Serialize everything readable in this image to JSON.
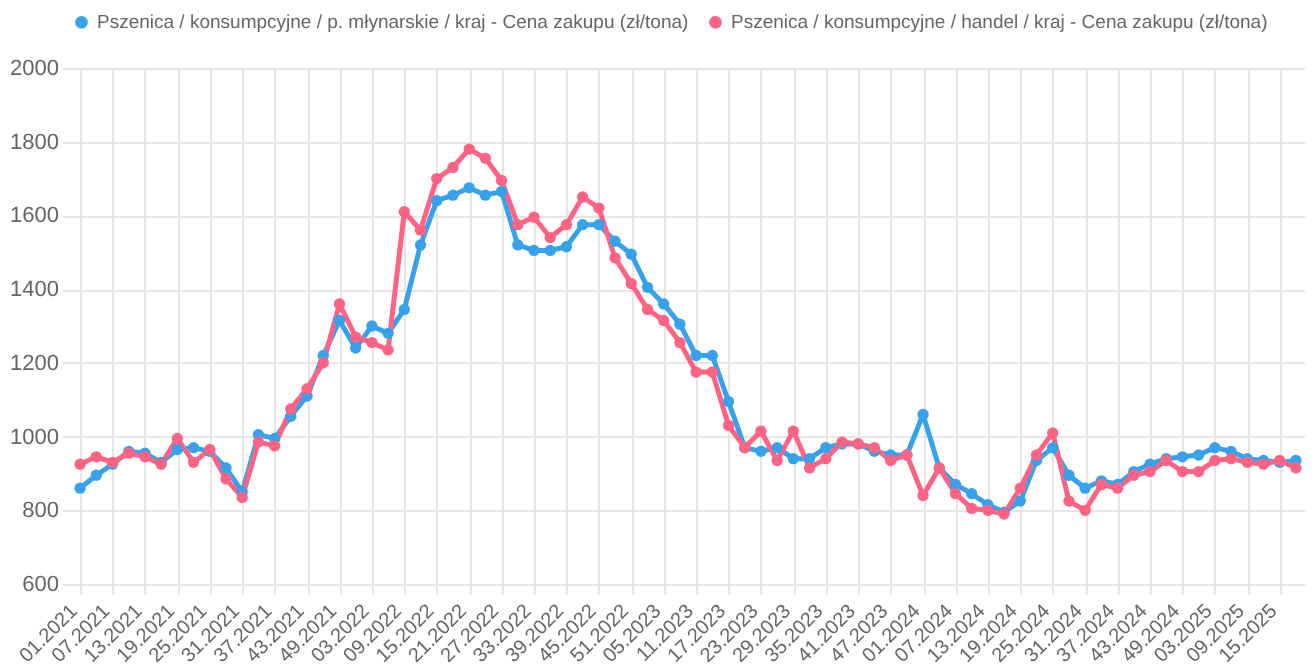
{
  "chart_data": {
    "type": "line",
    "categories": [
      "01.2021",
      null,
      "07.2021",
      null,
      "13.2021",
      null,
      "19.2021",
      null,
      "25.2021",
      null,
      "31.2021",
      null,
      "37.2021",
      null,
      "43.2021",
      null,
      "49.2021",
      null,
      "03.2022",
      null,
      "09.2022",
      null,
      "15.2022",
      null,
      "21.2022",
      null,
      "27.2022",
      null,
      "33.2022",
      null,
      "39.2022",
      null,
      "45.2022",
      null,
      "51.2022",
      null,
      "05.2023",
      null,
      "11.2023",
      null,
      "17.2023",
      null,
      "23.2023",
      null,
      "29.2023",
      null,
      "35.2023",
      null,
      "41.2023",
      null,
      "47.2023",
      null,
      "01.2024",
      null,
      "07.2024",
      null,
      "13.2024",
      null,
      "19.2024",
      null,
      "25.2024",
      null,
      "31.2024",
      null,
      "37.2024",
      null,
      "43.2024",
      null,
      "49.2024",
      null,
      "03.2025",
      null,
      "09.2025",
      null,
      "15.2025",
      null
    ],
    "series": [
      {
        "name": "Pszenica / konsumpcyjne / p. młynarskie / kraj - Cena zakupu (zł/tona)",
        "color": "#36a2eb",
        "values": [
          860,
          895,
          925,
          960,
          955,
          930,
          965,
          970,
          960,
          915,
          850,
          1005,
          995,
          1055,
          1110,
          1220,
          1315,
          1240,
          1300,
          1280,
          1345,
          1520,
          1640,
          1655,
          1675,
          1655,
          1665,
          1520,
          1505,
          1505,
          1515,
          1575,
          1575,
          1530,
          1495,
          1405,
          1360,
          1305,
          1220,
          1220,
          1095,
          970,
          960,
          970,
          940,
          940,
          970,
          980,
          980,
          960,
          950,
          950,
          1060,
          915,
          870,
          845,
          815,
          795,
          825,
          935,
          970,
          895,
          860,
          880,
          870,
          905,
          925,
          940,
          945,
          950,
          970,
          960,
          940,
          935,
          930,
          935
        ]
      },
      {
        "name": "Pszenica / konsumpcyjne / handel / kraj - Cena zakupu (zł/tona)",
        "color": "#ff6384",
        "values": [
          925,
          945,
          930,
          955,
          945,
          925,
          995,
          930,
          965,
          885,
          835,
          985,
          975,
          1075,
          1130,
          1200,
          1360,
          1270,
          1255,
          1235,
          1610,
          1560,
          1700,
          1730,
          1780,
          1755,
          1695,
          1575,
          1595,
          1540,
          1575,
          1650,
          1620,
          1485,
          1415,
          1345,
          1315,
          1255,
          1175,
          1175,
          1030,
          970,
          1015,
          935,
          1015,
          915,
          940,
          985,
          980,
          970,
          935,
          950,
          840,
          915,
          845,
          805,
          800,
          790,
          860,
          950,
          1010,
          825,
          800,
          870,
          860,
          895,
          905,
          935,
          905,
          905,
          935,
          940,
          930,
          925,
          935,
          915
        ]
      }
    ],
    "ylim": [
      600,
      2000
    ],
    "yticks": [
      600,
      800,
      1000,
      1200,
      1400,
      1600,
      1800,
      2000
    ],
    "grid": true,
    "legend": "top",
    "marker": "circle",
    "line_style": "solid"
  }
}
